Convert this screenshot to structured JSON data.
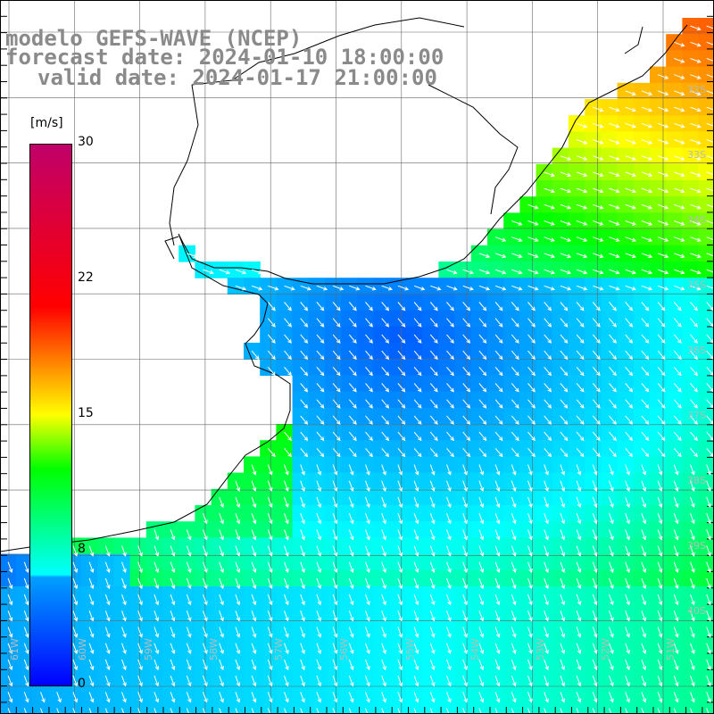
{
  "title": {
    "line1": "modelo GEFS-WAVE (NCEP)",
    "line2": "forecast date: 2024-01-10 18:00:00",
    "line3": "valid date: 2024-01-17 21:00:00"
  },
  "colorbar": {
    "unit": "[m/s]",
    "ticks": [
      "30",
      "22",
      "15",
      "8",
      "0"
    ],
    "colors": [
      "#0000ff",
      "#00a0ff",
      "#00ffff",
      "#00ff00",
      "#ffff00",
      "#ff8000",
      "#ff0000",
      "#c0006a"
    ]
  },
  "lon_labels": [
    "61W",
    "60W",
    "59W",
    "58W",
    "57W",
    "56W",
    "55W",
    "54W",
    "53W",
    "52W",
    "51W"
  ],
  "lat_labels": [
    "32S",
    "33S",
    "34S",
    "35S",
    "36S",
    "37S",
    "38S",
    "39S",
    "40S"
  ]
}
